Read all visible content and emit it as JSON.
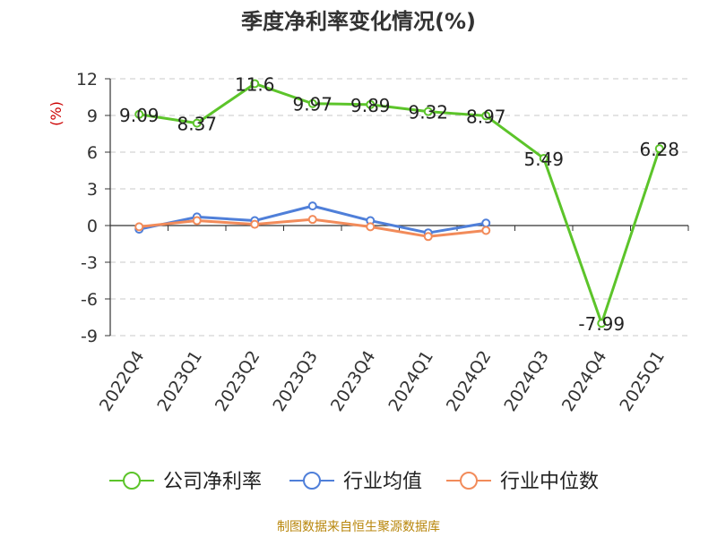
{
  "chart_data": {
    "type": "line",
    "title": "季度净利率变化情况(%)",
    "ylabel": "(%)",
    "xlabel": "",
    "categories": [
      "2022Q4",
      "2023Q1",
      "2023Q2",
      "2023Q3",
      "2023Q4",
      "2024Q1",
      "2024Q2",
      "2024Q3",
      "2024Q4",
      "2025Q1"
    ],
    "ylim": [
      -9,
      12
    ],
    "yticks": [
      12,
      9,
      6,
      3,
      0,
      -3,
      -6,
      -9
    ],
    "grid": true,
    "legend_position": "bottom",
    "series": [
      {
        "name": "公司净利率",
        "color": "#5cc42a",
        "show_labels": true,
        "values": [
          9.09,
          8.37,
          11.6,
          9.97,
          9.89,
          9.32,
          8.97,
          5.49,
          -7.99,
          6.28
        ]
      },
      {
        "name": "行业均值",
        "color": "#4f7fd9",
        "show_labels": false,
        "values": [
          -0.3,
          0.7,
          0.4,
          1.6,
          0.4,
          -0.6,
          0.2,
          null,
          null,
          null
        ]
      },
      {
        "name": "行业中位数",
        "color": "#f28b5a",
        "show_labels": false,
        "values": [
          -0.1,
          0.4,
          0.1,
          0.5,
          -0.1,
          -0.9,
          -0.4,
          null,
          null,
          null
        ]
      }
    ]
  },
  "labels": {
    "point_labels": [
      "9.09",
      "8.37",
      "11.6",
      "9.97",
      "9.89",
      "9.32",
      "8.97",
      "5.49",
      "-7.99",
      "6.28"
    ]
  },
  "source": "制图数据来自恒生聚源数据库"
}
